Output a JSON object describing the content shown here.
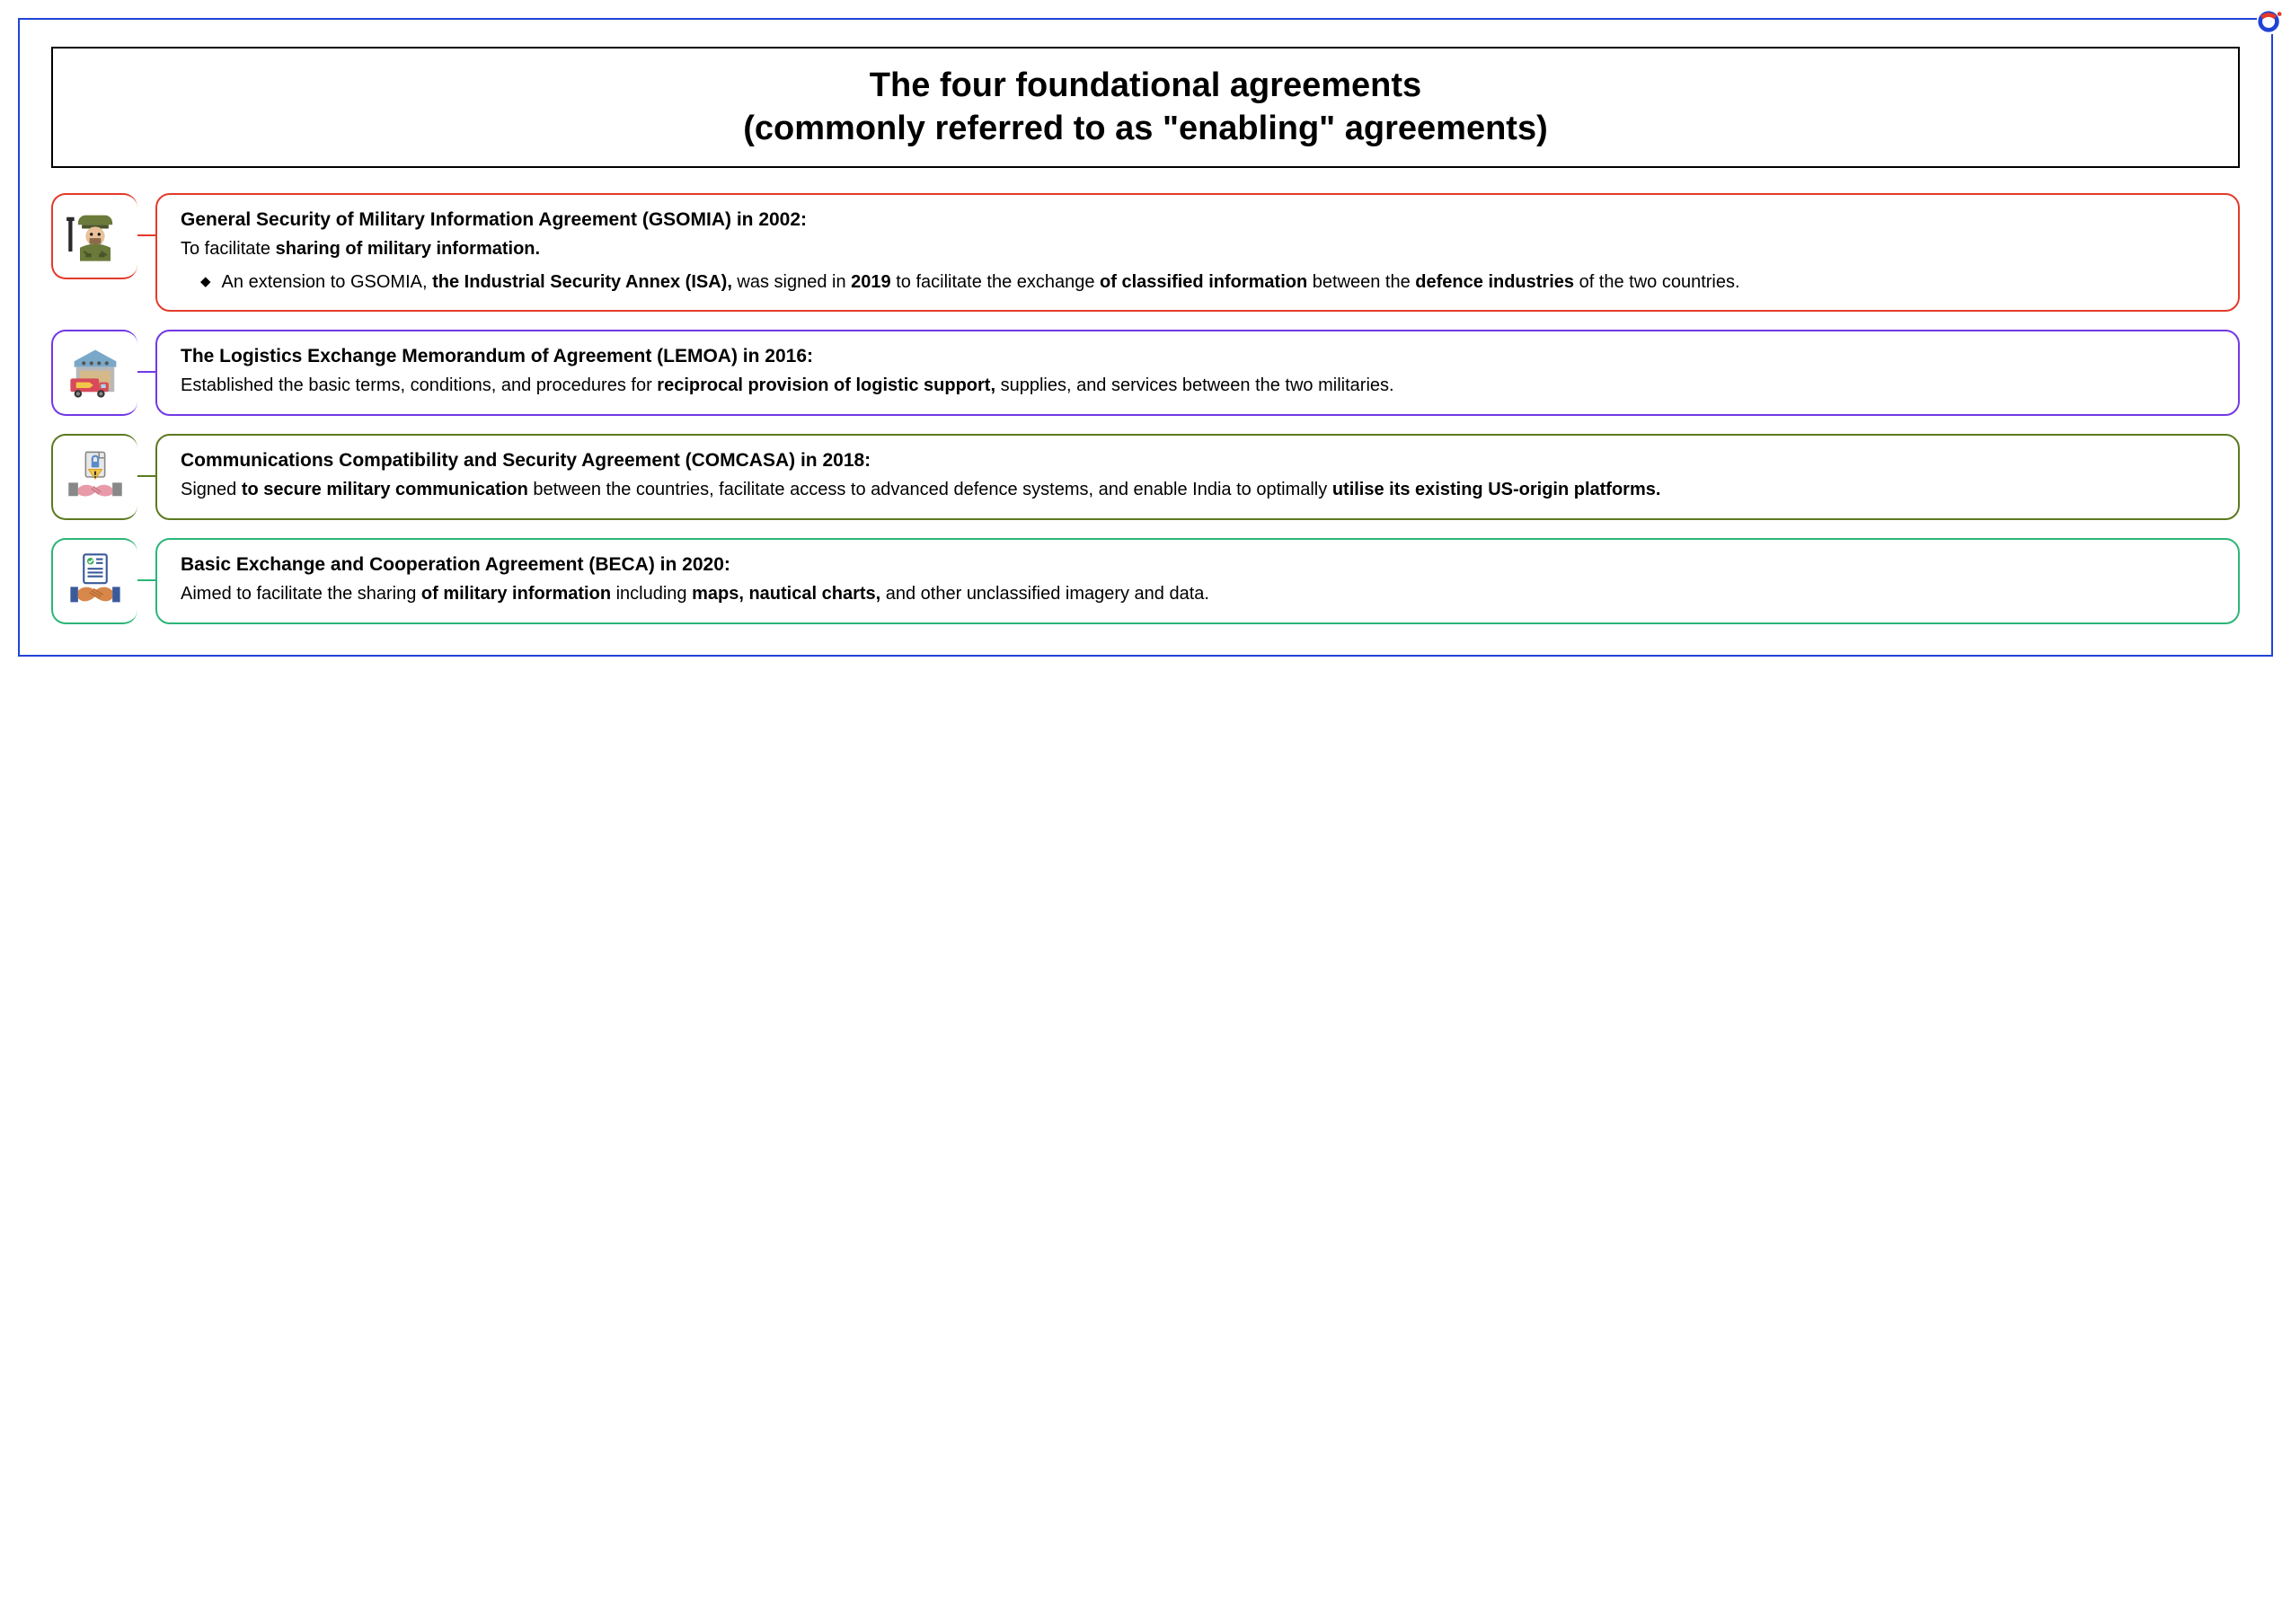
{
  "title_line1": "The four foundational agreements",
  "title_line2": "(commonly referred to as \"enabling\" agreements)",
  "colors": {
    "frame": "#2043d6",
    "card1": "#e43a2a",
    "card2": "#7338e6",
    "card3": "#5a7a1f",
    "card4": "#2bb578"
  },
  "cards": [
    {
      "heading": "General Security of Military Information Agreement (GSOMIA) in 2002:",
      "body_html": "To facilitate <b>sharing of military information.</b>",
      "bullet_html": "An extension to GSOMIA, <b>the Industrial Security Annex (ISA),</b> was signed in <b>2019</b> to facilitate the exchange <b>of classified information</b> between the <b>defence industries</b> of the two countries.",
      "icon": "soldier"
    },
    {
      "heading": "The Logistics Exchange Memorandum of Agreement (LEMOA) in 2016:",
      "body_html": "Established the basic terms, conditions, and procedures for <b>reciprocal provision of logistic support,</b> supplies, and services between the two militaries.",
      "icon": "warehouse"
    },
    {
      "heading": "Communications Compatibility and Security Agreement (COMCASA) in 2018:",
      "body_html": "Signed <b>to secure military communication</b> between the countries, facilitate access to advanced defence systems, and enable India to optimally <b>utilise its existing US-origin platforms.</b>",
      "icon": "handshake-doc"
    },
    {
      "heading": "Basic Exchange and Cooperation Agreement (BECA) in 2020:",
      "body_html": "Aimed to facilitate the sharing <b>of military information</b> including <b>maps, nautical charts,</b> and other unclassified imagery and data.",
      "icon": "handshake-check"
    }
  ]
}
